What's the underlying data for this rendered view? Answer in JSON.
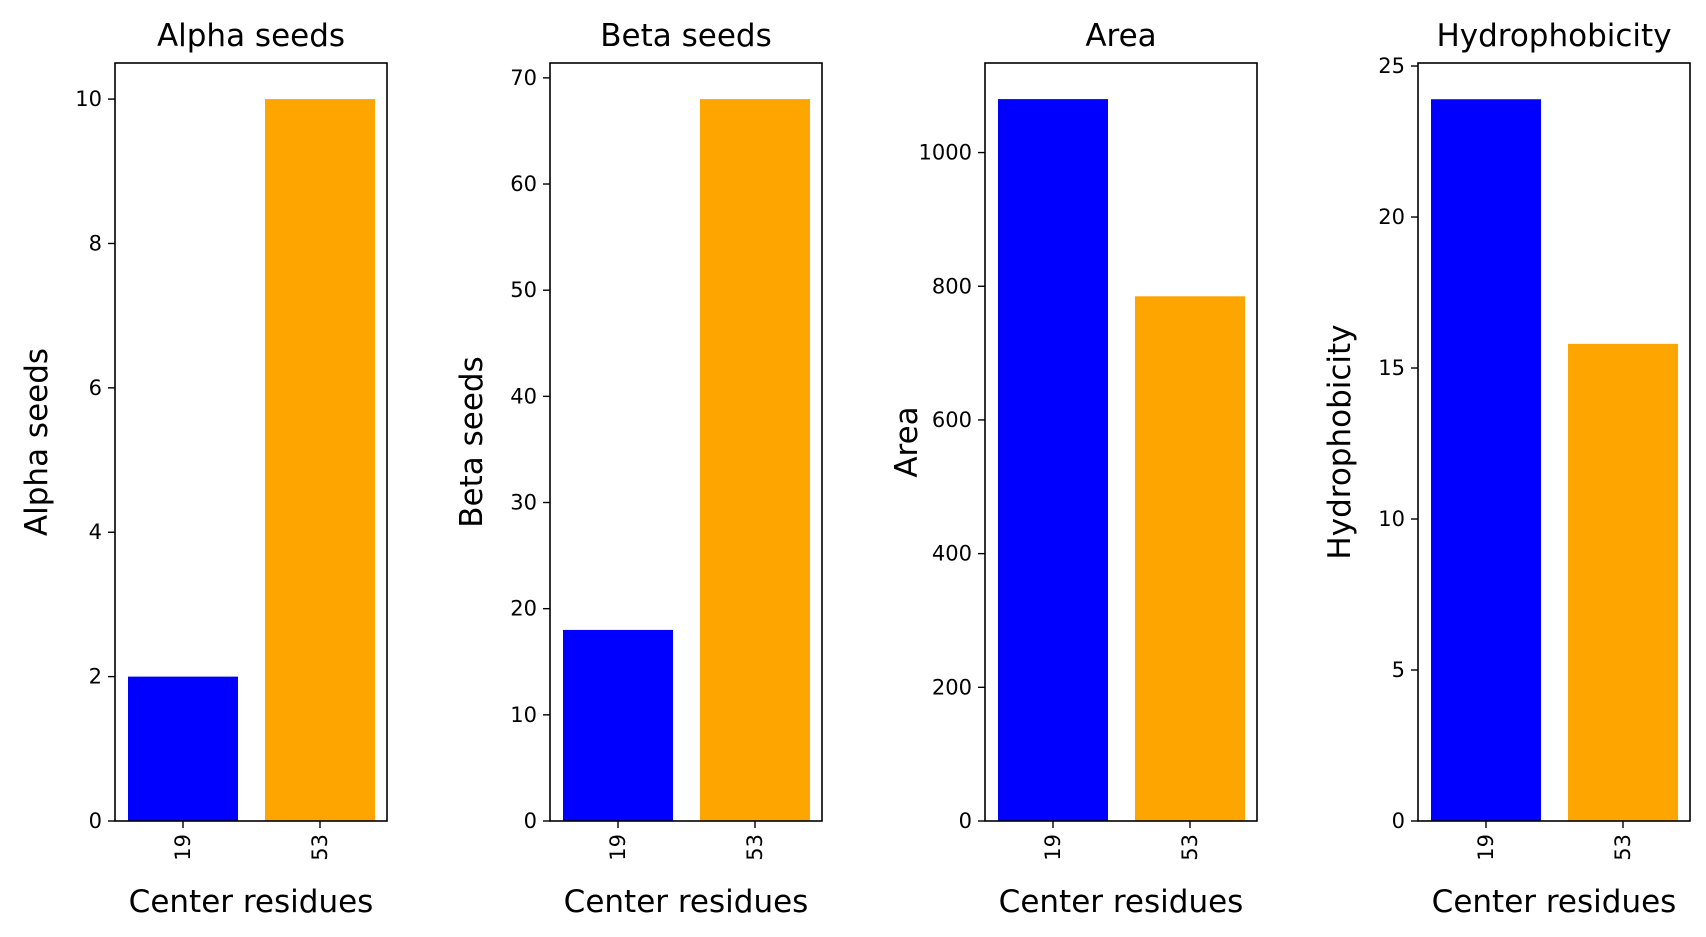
{
  "chart_data": [
    {
      "type": "bar",
      "title": "Alpha seeds",
      "xlabel": "Center residues",
      "ylabel": "Alpha seeds",
      "categories": [
        "19",
        "53"
      ],
      "values": [
        2,
        10
      ],
      "colors": [
        "#0000ff",
        "#ffa500"
      ],
      "ylim": [
        0,
        10.5
      ],
      "yticks": [
        0,
        2,
        4,
        6,
        8,
        10
      ],
      "grid": false
    },
    {
      "type": "bar",
      "title": "Beta seeds",
      "xlabel": "Center residues",
      "ylabel": "Beta seeds",
      "categories": [
        "19",
        "53"
      ],
      "values": [
        18,
        68
      ],
      "colors": [
        "#0000ff",
        "#ffa500"
      ],
      "ylim": [
        0,
        71.4
      ],
      "yticks": [
        0,
        10,
        20,
        30,
        40,
        50,
        60,
        70
      ],
      "grid": false
    },
    {
      "type": "bar",
      "title": "Area",
      "xlabel": "Center residues",
      "ylabel": "Area",
      "categories": [
        "19",
        "53"
      ],
      "values": [
        1080,
        785
      ],
      "colors": [
        "#0000ff",
        "#ffa500"
      ],
      "ylim": [
        0,
        1134
      ],
      "yticks": [
        0,
        200,
        400,
        600,
        800,
        1000
      ],
      "grid": false
    },
    {
      "type": "bar",
      "title": "Hydrophobicity",
      "xlabel": "Center residues",
      "ylabel": "Hydrophobicity",
      "categories": [
        "19",
        "53"
      ],
      "values": [
        23.9,
        15.8
      ],
      "colors": [
        "#0000ff",
        "#ffa500"
      ],
      "ylim": [
        0,
        25.1
      ],
      "yticks": [
        0,
        5,
        10,
        15,
        20,
        25
      ],
      "grid": false
    }
  ]
}
